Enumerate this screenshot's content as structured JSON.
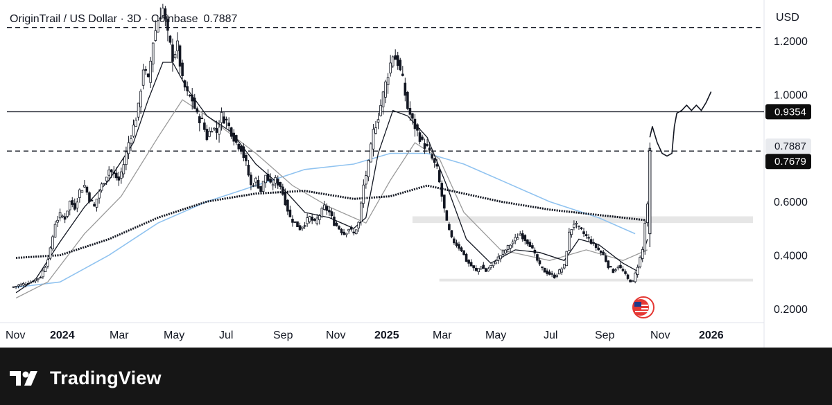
{
  "brand": {
    "name": "TradingView",
    "logo_icon": "tradingview-logo-icon"
  },
  "chart_data": {
    "type": "candlestick",
    "title": "OriginTrail / US Dollar · 3D · Coinbase",
    "last_price": "0.7887",
    "currency_label": "USD",
    "y_ticks": [
      {
        "value": 1.2,
        "label": "1.2000"
      },
      {
        "value": 1.0,
        "label": "1.0000"
      },
      {
        "value": 0.6,
        "label": "0.6000"
      },
      {
        "value": 0.4,
        "label": "0.4000"
      },
      {
        "value": 0.2,
        "label": "0.2000"
      }
    ],
    "ylim": [
      0.16,
      1.38
    ],
    "x_ticks": [
      {
        "label": "Nov",
        "bold": false
      },
      {
        "label": "2024",
        "bold": true
      },
      {
        "label": "Mar",
        "bold": false
      },
      {
        "label": "May",
        "bold": false
      },
      {
        "label": "Jul",
        "bold": false
      },
      {
        "label": "Sep",
        "bold": false
      },
      {
        "label": "Nov",
        "bold": false
      },
      {
        "label": "2025",
        "bold": true
      },
      {
        "label": "Mar",
        "bold": false
      },
      {
        "label": "May",
        "bold": false
      },
      {
        "label": "Jul",
        "bold": false
      },
      {
        "label": "Sep",
        "bold": false
      },
      {
        "label": "Nov",
        "bold": false
      },
      {
        "label": "2026",
        "bold": true
      }
    ],
    "price_labels": [
      {
        "value": 0.9354,
        "label": "0.9354",
        "style": "dark"
      },
      {
        "value": 0.7887,
        "label": "0.7887",
        "style": "light"
      },
      {
        "value": 0.7679,
        "label": "0.7679",
        "style": "dark"
      }
    ],
    "horizontal_lines": [
      {
        "value": 1.25,
        "style": "dashed"
      },
      {
        "value": 0.9354,
        "style": "solid"
      },
      {
        "value": 0.7887,
        "style": "dashed"
      }
    ],
    "zones": [
      {
        "from": 0.52,
        "to": 0.545,
        "color": "#e6e6e6"
      },
      {
        "from": 0.302,
        "to": 0.312,
        "color": "#e6e6e6"
      }
    ],
    "price_path": [
      [
        0,
        0.28
      ],
      [
        4,
        0.29
      ],
      [
        8,
        0.3
      ],
      [
        12,
        0.32
      ],
      [
        14,
        0.36
      ],
      [
        16,
        0.42
      ],
      [
        18,
        0.52
      ],
      [
        20,
        0.55
      ],
      [
        22,
        0.54
      ],
      [
        24,
        0.6
      ],
      [
        26,
        0.58
      ],
      [
        28,
        0.64
      ],
      [
        30,
        0.66
      ],
      [
        32,
        0.61
      ],
      [
        34,
        0.58
      ],
      [
        36,
        0.64
      ],
      [
        38,
        0.68
      ],
      [
        40,
        0.72
      ],
      [
        42,
        0.7
      ],
      [
        44,
        0.68
      ],
      [
        46,
        0.74
      ],
      [
        48,
        0.82
      ],
      [
        50,
        0.88
      ],
      [
        52,
        0.95
      ],
      [
        54,
        1.1
      ],
      [
        56,
        1.05
      ],
      [
        58,
        1.2
      ],
      [
        60,
        1.28
      ],
      [
        62,
        1.32
      ],
      [
        64,
        1.22
      ],
      [
        66,
        1.14
      ],
      [
        68,
        1.18
      ],
      [
        70,
        1.05
      ],
      [
        72,
        1.0
      ],
      [
        74,
        0.98
      ],
      [
        76,
        0.92
      ],
      [
        78,
        0.9
      ],
      [
        80,
        0.84
      ],
      [
        82,
        0.88
      ],
      [
        84,
        0.86
      ],
      [
        86,
        0.92
      ],
      [
        88,
        0.9
      ],
      [
        90,
        0.86
      ],
      [
        92,
        0.82
      ],
      [
        94,
        0.8
      ],
      [
        96,
        0.74
      ],
      [
        98,
        0.66
      ],
      [
        100,
        0.68
      ],
      [
        102,
        0.64
      ],
      [
        104,
        0.7
      ],
      [
        106,
        0.66
      ],
      [
        108,
        0.68
      ],
      [
        110,
        0.66
      ],
      [
        112,
        0.6
      ],
      [
        114,
        0.54
      ],
      [
        116,
        0.52
      ],
      [
        118,
        0.5
      ],
      [
        120,
        0.52
      ],
      [
        122,
        0.54
      ],
      [
        124,
        0.52
      ],
      [
        126,
        0.55
      ],
      [
        128,
        0.58
      ],
      [
        130,
        0.56
      ],
      [
        132,
        0.52
      ],
      [
        134,
        0.5
      ],
      [
        136,
        0.48
      ],
      [
        138,
        0.5
      ],
      [
        140,
        0.48
      ],
      [
        142,
        0.52
      ],
      [
        144,
        0.66
      ],
      [
        146,
        0.74
      ],
      [
        148,
        0.86
      ],
      [
        150,
        0.92
      ],
      [
        152,
        1.0
      ],
      [
        154,
        1.08
      ],
      [
        156,
        1.15
      ],
      [
        158,
        1.12
      ],
      [
        160,
        1.05
      ],
      [
        162,
        0.95
      ],
      [
        164,
        0.9
      ],
      [
        166,
        0.86
      ],
      [
        168,
        0.82
      ],
      [
        170,
        0.8
      ],
      [
        172,
        0.76
      ],
      [
        174,
        0.72
      ],
      [
        176,
        0.62
      ],
      [
        178,
        0.52
      ],
      [
        180,
        0.46
      ],
      [
        182,
        0.44
      ],
      [
        184,
        0.42
      ],
      [
        186,
        0.38
      ],
      [
        188,
        0.36
      ],
      [
        190,
        0.34
      ],
      [
        192,
        0.36
      ],
      [
        194,
        0.34
      ],
      [
        196,
        0.36
      ],
      [
        198,
        0.38
      ],
      [
        200,
        0.4
      ],
      [
        202,
        0.42
      ],
      [
        204,
        0.44
      ],
      [
        206,
        0.46
      ],
      [
        208,
        0.48
      ],
      [
        210,
        0.46
      ],
      [
        212,
        0.44
      ],
      [
        214,
        0.4
      ],
      [
        216,
        0.36
      ],
      [
        218,
        0.34
      ],
      [
        220,
        0.33
      ],
      [
        222,
        0.32
      ],
      [
        224,
        0.34
      ],
      [
        226,
        0.36
      ],
      [
        228,
        0.48
      ],
      [
        230,
        0.52
      ],
      [
        232,
        0.5
      ],
      [
        234,
        0.48
      ],
      [
        236,
        0.46
      ],
      [
        238,
        0.44
      ],
      [
        240,
        0.42
      ],
      [
        242,
        0.4
      ],
      [
        244,
        0.36
      ],
      [
        246,
        0.34
      ],
      [
        248,
        0.36
      ],
      [
        250,
        0.34
      ],
      [
        252,
        0.31
      ],
      [
        254,
        0.3
      ],
      [
        256,
        0.36
      ],
      [
        258,
        0.42
      ],
      [
        259,
        0.52
      ],
      [
        260,
        0.58
      ],
      [
        261,
        0.79
      ]
    ],
    "ma_fast": [
      [
        2,
        0.26
      ],
      [
        10,
        0.31
      ],
      [
        20,
        0.45
      ],
      [
        30,
        0.58
      ],
      [
        40,
        0.68
      ],
      [
        50,
        0.82
      ],
      [
        56,
        0.98
      ],
      [
        62,
        1.12
      ],
      [
        66,
        1.12
      ],
      [
        72,
        1.02
      ],
      [
        80,
        0.92
      ],
      [
        90,
        0.86
      ],
      [
        100,
        0.74
      ],
      [
        110,
        0.66
      ],
      [
        120,
        0.56
      ],
      [
        130,
        0.54
      ],
      [
        140,
        0.5
      ],
      [
        145,
        0.54
      ],
      [
        150,
        0.78
      ],
      [
        156,
        0.94
      ],
      [
        162,
        0.92
      ],
      [
        170,
        0.84
      ],
      [
        178,
        0.66
      ],
      [
        186,
        0.46
      ],
      [
        196,
        0.37
      ],
      [
        206,
        0.42
      ],
      [
        216,
        0.41
      ],
      [
        226,
        0.38
      ],
      [
        232,
        0.46
      ],
      [
        240,
        0.44
      ],
      [
        250,
        0.37
      ],
      [
        256,
        0.34
      ],
      [
        260,
        0.46
      ]
    ],
    "ma_mid": [
      [
        2,
        0.24
      ],
      [
        15,
        0.3
      ],
      [
        30,
        0.48
      ],
      [
        45,
        0.62
      ],
      [
        60,
        0.84
      ],
      [
        70,
        0.98
      ],
      [
        80,
        0.92
      ],
      [
        100,
        0.78
      ],
      [
        115,
        0.66
      ],
      [
        130,
        0.58
      ],
      [
        145,
        0.52
      ],
      [
        155,
        0.68
      ],
      [
        165,
        0.82
      ],
      [
        175,
        0.76
      ],
      [
        185,
        0.56
      ],
      [
        200,
        0.42
      ],
      [
        220,
        0.38
      ],
      [
        235,
        0.42
      ],
      [
        250,
        0.38
      ],
      [
        260,
        0.42
      ]
    ],
    "ma_long_blue": [
      [
        2,
        0.28
      ],
      [
        20,
        0.3
      ],
      [
        40,
        0.4
      ],
      [
        60,
        0.52
      ],
      [
        80,
        0.6
      ],
      [
        100,
        0.66
      ],
      [
        120,
        0.72
      ],
      [
        140,
        0.74
      ],
      [
        155,
        0.78
      ],
      [
        170,
        0.78
      ],
      [
        185,
        0.74
      ],
      [
        200,
        0.68
      ],
      [
        220,
        0.6
      ],
      [
        240,
        0.54
      ],
      [
        255,
        0.48
      ]
    ],
    "ma_long_dotted": [
      [
        2,
        0.39
      ],
      [
        20,
        0.4
      ],
      [
        40,
        0.46
      ],
      [
        60,
        0.54
      ],
      [
        80,
        0.6
      ],
      [
        100,
        0.63
      ],
      [
        120,
        0.64
      ],
      [
        140,
        0.61
      ],
      [
        155,
        0.62
      ],
      [
        170,
        0.66
      ],
      [
        185,
        0.63
      ],
      [
        200,
        0.6
      ],
      [
        220,
        0.57
      ],
      [
        240,
        0.55
      ],
      [
        260,
        0.53
      ]
    ],
    "projection_path": [
      [
        261,
        0.84
      ],
      [
        262,
        0.88
      ],
      [
        264,
        0.82
      ],
      [
        266,
        0.78
      ],
      [
        268,
        0.77
      ],
      [
        270,
        0.78
      ],
      [
        271,
        0.88
      ],
      [
        272,
        0.93
      ],
      [
        274,
        0.94
      ],
      [
        276,
        0.96
      ],
      [
        278,
        0.94
      ],
      [
        280,
        0.96
      ],
      [
        282,
        0.94
      ],
      [
        284,
        0.97
      ],
      [
        286,
        1.01
      ]
    ],
    "event_marker_icon": "us-flag-event-icon",
    "grid": false,
    "legend_placement": "top-left"
  }
}
